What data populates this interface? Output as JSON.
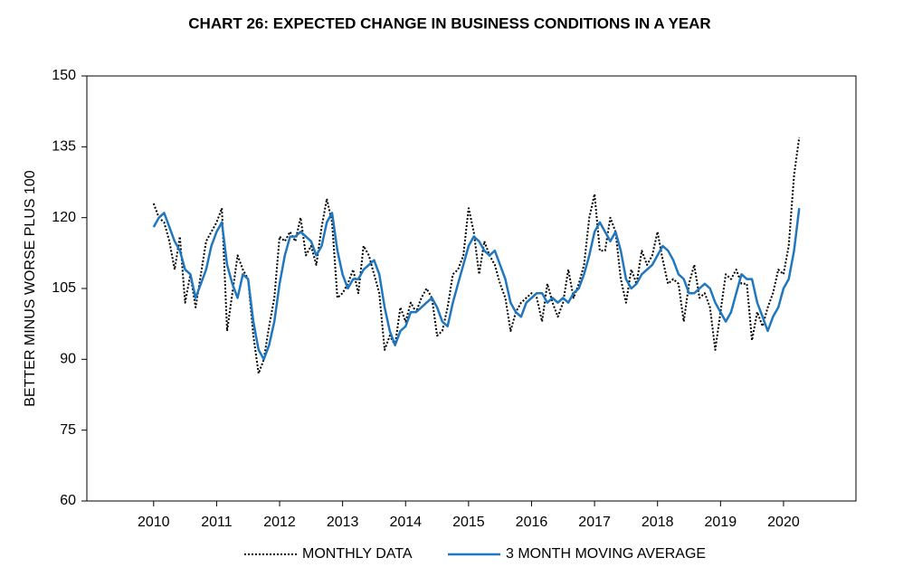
{
  "chart_data": {
    "type": "line",
    "title": "CHART 26: EXPECTED CHANGE IN BUSINESS CONDITIONS IN A YEAR",
    "ylabel": "BETTER MINUS WORSE PLUS 100",
    "x": [
      2010,
      2010.083,
      2010.167,
      2010.25,
      2010.333,
      2010.417,
      2010.5,
      2010.583,
      2010.667,
      2010.75,
      2010.833,
      2010.917,
      2011,
      2011.083,
      2011.167,
      2011.25,
      2011.333,
      2011.417,
      2011.5,
      2011.583,
      2011.667,
      2011.75,
      2011.833,
      2011.917,
      2012,
      2012.083,
      2012.167,
      2012.25,
      2012.333,
      2012.417,
      2012.5,
      2012.583,
      2012.667,
      2012.75,
      2012.833,
      2012.917,
      2013,
      2013.083,
      2013.167,
      2013.25,
      2013.333,
      2013.417,
      2013.5,
      2013.583,
      2013.667,
      2013.75,
      2013.833,
      2013.917,
      2014,
      2014.083,
      2014.167,
      2014.25,
      2014.333,
      2014.417,
      2014.5,
      2014.583,
      2014.667,
      2014.75,
      2014.833,
      2014.917,
      2015,
      2015.083,
      2015.167,
      2015.25,
      2015.333,
      2015.417,
      2015.5,
      2015.583,
      2015.667,
      2015.75,
      2015.833,
      2015.917,
      2016,
      2016.083,
      2016.167,
      2016.25,
      2016.333,
      2016.417,
      2016.5,
      2016.583,
      2016.667,
      2016.75,
      2016.833,
      2016.917,
      2017,
      2017.083,
      2017.167,
      2017.25,
      2017.333,
      2017.417,
      2017.5,
      2017.583,
      2017.667,
      2017.75,
      2017.833,
      2017.917,
      2018,
      2018.083,
      2018.167,
      2018.25,
      2018.333,
      2018.417,
      2018.5,
      2018.583,
      2018.667,
      2018.75,
      2018.833,
      2018.917,
      2019,
      2019.083,
      2019.167,
      2019.25,
      2019.333,
      2019.417,
      2019.5,
      2019.583,
      2019.667,
      2019.75,
      2019.833,
      2019.917,
      2020,
      2020.083,
      2020.167,
      2020.25
    ],
    "series": [
      {
        "name": "MONTHLY DATA",
        "color": "#000000",
        "style": "dotted",
        "values": [
          123,
          120,
          119,
          115,
          109,
          116,
          102,
          108,
          101,
          108,
          115,
          117,
          119,
          122,
          96,
          104,
          112,
          109,
          107,
          95,
          87,
          90,
          97,
          103,
          116,
          115,
          117,
          115,
          120,
          112,
          114,
          110,
          118,
          124,
          119,
          103,
          104,
          106,
          109,
          104,
          114,
          112,
          108,
          104,
          92,
          95,
          93,
          101,
          98,
          102,
          100,
          103,
          105,
          103,
          95,
          96,
          101,
          108,
          109,
          112,
          122,
          117,
          108,
          115,
          112,
          110,
          106,
          103,
          96,
          100,
          102,
          103,
          104,
          103,
          98,
          106,
          102,
          99,
          102,
          109,
          103,
          106,
          110,
          120,
          125,
          113,
          113,
          120,
          117,
          107,
          102,
          109,
          106,
          113,
          110,
          112,
          117,
          111,
          106,
          107,
          106,
          98,
          106,
          110,
          103,
          104,
          101,
          92,
          100,
          108,
          107,
          109,
          106,
          106,
          94,
          100,
          97,
          101,
          104,
          109,
          108,
          114,
          129,
          137
        ]
      },
      {
        "name": "3 MONTH MOVING AVERAGE",
        "color": "#1f77c0",
        "style": "solid",
        "values": [
          118,
          120,
          121,
          118,
          115,
          113,
          109,
          108,
          103,
          106,
          109,
          114,
          117,
          119,
          110,
          106,
          103,
          108,
          107,
          98,
          92,
          90,
          93,
          98,
          106,
          112,
          116,
          116,
          117,
          116,
          115,
          112,
          114,
          119,
          121,
          113,
          108,
          105,
          107,
          107,
          109,
          110,
          111,
          108,
          101,
          96,
          93,
          96,
          97,
          100,
          100,
          101,
          102,
          103,
          101,
          98,
          97,
          102,
          106,
          110,
          114,
          116,
          115,
          113,
          112,
          113,
          110,
          107,
          102,
          100,
          99,
          102,
          103,
          104,
          104,
          102,
          103,
          102,
          103,
          102,
          104,
          105,
          108,
          112,
          117,
          119,
          117,
          115,
          117,
          113,
          107,
          105,
          106,
          108,
          109,
          110,
          112,
          114,
          113,
          111,
          108,
          107,
          104,
          104,
          105,
          106,
          105,
          102,
          100,
          98,
          100,
          104,
          108,
          107,
          107,
          102,
          99,
          96,
          99,
          101,
          105,
          107,
          113,
          122
        ]
      }
    ],
    "xlim": [
      2008.94,
      2021.15
    ],
    "xticks": [
      2010,
      2011,
      2012,
      2013,
      2014,
      2015,
      2016,
      2017,
      2018,
      2019,
      2020
    ],
    "ylim": [
      60,
      150
    ],
    "yticks": [
      60,
      75,
      90,
      105,
      120,
      135,
      150
    ],
    "legend": "bottom"
  }
}
